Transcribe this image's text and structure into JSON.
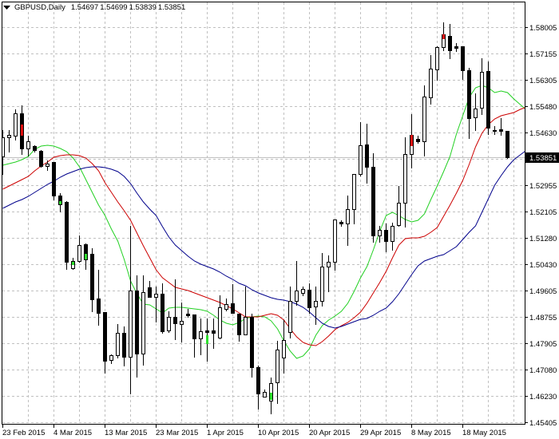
{
  "header": {
    "symbol": "GBPUSD,Daily",
    "open": "1.54697",
    "high": "1.54699",
    "low": "1.53839",
    "close": "1.53851",
    "toggle_icon": "triangle-down-icon"
  },
  "colors": {
    "background": "#ffffff",
    "grid": "#c0c0c0",
    "bull_body": "#ffffff",
    "bear_body": "#000000",
    "price_line": "#c0c0c0",
    "price_tag_bg": "#000000",
    "price_tag_text": "#ffffff"
  },
  "chart_data": {
    "type": "candlestick",
    "title": "GBPUSD,Daily",
    "xlabel": "",
    "ylabel": "",
    "ylim": [
      1.45405,
      1.58005
    ],
    "grid": true,
    "y_ticks": [
      "1.58005",
      "1.57155",
      "1.56305",
      "1.55480",
      "1.54630",
      "",
      "1.52955",
      "1.52105",
      "1.51280",
      "1.50430",
      "1.49605",
      "1.48755",
      "1.47905",
      "1.47080",
      "1.46230",
      "1.45405"
    ],
    "x_ticks": [
      {
        "label": "23 Feb 2015",
        "index": 0
      },
      {
        "label": "4 Mar 2015",
        "index": 8
      },
      {
        "label": "13 Mar 2015",
        "index": 16
      },
      {
        "label": "23 Mar 2015",
        "index": 24
      },
      {
        "label": "1 Apr 2015",
        "index": 32
      },
      {
        "label": "10 Apr 2015",
        "index": 40
      },
      {
        "label": "20 Apr 2015",
        "index": 48
      },
      {
        "label": "29 Apr 2015",
        "index": 56
      },
      {
        "label": "8 May 2015",
        "index": 64
      },
      {
        "label": "18 May 2015",
        "index": 72
      }
    ],
    "current_price": {
      "value": 1.53851,
      "label": "1.53851"
    },
    "candles_format": [
      "open",
      "high",
      "low",
      "close"
    ],
    "candles": [
      [
        1.53881,
        1.54721,
        1.53321,
        1.54492
      ],
      [
        1.54492,
        1.54721,
        1.54034,
        1.54569
      ],
      [
        1.54543,
        1.55383,
        1.54416,
        1.55256
      ],
      [
        1.55256,
        1.5551,
        1.53958,
        1.54136
      ],
      [
        1.54136,
        1.54543,
        1.53907,
        1.54365
      ],
      [
        1.54212,
        1.54238,
        1.54034,
        1.54085
      ],
      [
        1.5406,
        1.54085,
        1.5355,
        1.53576
      ],
      [
        1.53576,
        1.53754,
        1.53449,
        1.53652
      ],
      [
        1.53703,
        1.53703,
        1.52507,
        1.52634
      ],
      [
        1.52634,
        1.5271,
        1.52125,
        1.52354
      ],
      [
        1.5243,
        1.52456,
        1.50292,
        1.50521
      ],
      [
        1.50318,
        1.50649,
        1.50292,
        1.50547
      ],
      [
        1.50547,
        1.51361,
        1.50521,
        1.51056
      ],
      [
        1.51081,
        1.51107,
        1.50292,
        1.50598
      ],
      [
        1.50776,
        1.50954,
        1.48943,
        1.49325
      ],
      [
        1.4935,
        1.50267,
        1.4851,
        1.48892
      ],
      [
        1.48918,
        1.48918,
        1.46983,
        1.47365
      ],
      [
        1.4739,
        1.47568,
        1.47288,
        1.47543
      ],
      [
        1.47543,
        1.48536,
        1.47467,
        1.48256
      ],
      [
        1.48256,
        1.48459,
        1.47212,
        1.47492
      ],
      [
        1.47492,
        1.51667,
        1.46321,
        1.49605
      ],
      [
        1.49605,
        1.50089,
        1.46856,
        1.47594
      ],
      [
        1.47594,
        1.50089,
        1.47238,
        1.49554
      ],
      [
        1.49707,
        1.4991,
        1.49401,
        1.49401
      ],
      [
        1.49401,
        1.49732,
        1.48612,
        1.49503
      ],
      [
        1.49503,
        1.49834,
        1.48256,
        1.48307
      ],
      [
        1.48332,
        1.48943,
        1.48281,
        1.48765
      ],
      [
        1.48765,
        1.49961,
        1.48052,
        1.48561
      ],
      [
        1.48536,
        1.49223,
        1.47976,
        1.48638
      ],
      [
        1.48867,
        1.49019,
        1.48765,
        1.48816
      ],
      [
        1.48841,
        1.48841,
        1.47492,
        1.48078
      ],
      [
        1.48078,
        1.48714,
        1.47568,
        1.48307
      ],
      [
        1.48332,
        1.48714,
        1.47365,
        1.48281
      ],
      [
        1.48332,
        1.48714,
        1.47772,
        1.48256
      ],
      [
        1.48103,
        1.49452,
        1.48078,
        1.4907
      ],
      [
        1.49019,
        1.4935,
        1.48968,
        1.49172
      ],
      [
        1.49198,
        1.49809,
        1.48892,
        1.48892
      ],
      [
        1.48867,
        1.48867,
        1.48001,
        1.48205
      ],
      [
        1.48205,
        1.49732,
        1.48205,
        1.48765
      ],
      [
        1.48765,
        1.48867,
        1.46856,
        1.47161
      ],
      [
        1.47161,
        1.47212,
        1.45838,
        1.46321
      ],
      [
        1.46219,
        1.46448,
        1.46219,
        1.46372
      ],
      [
        1.46092,
        1.4683,
        1.45685,
        1.46652
      ],
      [
        1.46678,
        1.48001,
        1.46016,
        1.47721
      ],
      [
        1.47467,
        1.48663,
        1.46983,
        1.48027
      ],
      [
        1.48281,
        1.49732,
        1.48103,
        1.49274
      ],
      [
        1.49274,
        1.50547,
        1.49147,
        1.49605
      ],
      [
        1.49529,
        1.49732,
        1.49452,
        1.49656
      ],
      [
        1.4963,
        1.49834,
        1.48892,
        1.4907
      ],
      [
        1.49096,
        1.49732,
        1.48536,
        1.49274
      ],
      [
        1.49274,
        1.50801,
        1.49121,
        1.50369
      ],
      [
        1.50369,
        1.50725,
        1.49579,
        1.50521
      ],
      [
        1.50521,
        1.5187,
        1.50267,
        1.5187
      ],
      [
        1.51794,
        1.51845,
        1.51667,
        1.51743
      ],
      [
        1.51743,
        1.52634,
        1.51056,
        1.52201
      ],
      [
        1.52201,
        1.53321,
        1.51743,
        1.53321
      ],
      [
        1.53321,
        1.54976,
        1.5327,
        1.54238
      ],
      [
        1.54263,
        1.54925,
        1.53041,
        1.5355
      ],
      [
        1.5355,
        1.53983,
        1.51158,
        1.51361
      ],
      [
        1.51361,
        1.51667,
        1.51158,
        1.51539
      ],
      [
        1.51539,
        1.51743,
        1.50852,
        1.51183
      ],
      [
        1.51183,
        1.51769,
        1.50903,
        1.51667
      ],
      [
        1.51692,
        1.5294,
        1.51667,
        1.52405
      ],
      [
        1.52405,
        1.54492,
        1.51641,
        1.53958
      ],
      [
        1.53958,
        1.5523,
        1.53525,
        1.54569
      ],
      [
        1.54441,
        1.54543,
        1.54314,
        1.54365
      ],
      [
        1.54365,
        1.56147,
        1.53907,
        1.5579
      ],
      [
        1.55765,
        1.57114,
        1.55561,
        1.56681
      ],
      [
        1.56656,
        1.57394,
        1.56325,
        1.57369
      ],
      [
        1.57369,
        1.58158,
        1.57267,
        1.57776
      ],
      [
        1.57725,
        1.58107,
        1.57012,
        1.57267
      ],
      [
        1.57394,
        1.57496,
        1.57241,
        1.57343
      ],
      [
        1.57394,
        1.57394,
        1.5635,
        1.5663
      ],
      [
        1.5663,
        1.56707,
        1.54467,
        1.55103
      ],
      [
        1.55129,
        1.55892,
        1.54721,
        1.55409
      ],
      [
        1.55434,
        1.57012,
        1.5523,
        1.5658
      ],
      [
        1.56605,
        1.5691,
        1.54594,
        1.54798
      ],
      [
        1.54721,
        1.54849,
        1.54594,
        1.54696
      ],
      [
        1.54747,
        1.55103,
        1.54569,
        1.54696
      ],
      [
        1.54697,
        1.54699,
        1.53839,
        1.53851
      ]
    ],
    "candle_marks": [
      {
        "index": 3,
        "color": "#e01010",
        "from": 1.549,
        "to": 1.54543
      },
      {
        "index": 9,
        "color": "#2fe02f",
        "from": 1.52456,
        "to": 1.52354
      },
      {
        "index": 11,
        "color": "#2fe02f",
        "from": 1.50521,
        "to": 1.50419
      },
      {
        "index": 13,
        "color": "#2fe02f",
        "from": 1.50776,
        "to": 1.50598
      },
      {
        "index": 32,
        "color": "#2fe02f",
        "from": 1.48179,
        "to": 1.47899
      },
      {
        "index": 42,
        "color": "#2fe02f",
        "from": 1.46347,
        "to": 1.46118
      },
      {
        "index": 64,
        "color": "#e01010",
        "from": 1.54569,
        "to": 1.54212
      },
      {
        "index": 69,
        "color": "#e01010",
        "from": 1.57776,
        "to": 1.57623
      }
    ],
    "series": [
      {
        "name": "Green MA",
        "color": "#22d022",
        "values": [
          1.53601,
          1.53652,
          1.53703,
          1.53779,
          1.53881,
          1.5411,
          1.54212,
          1.54237,
          1.54212,
          1.54135,
          1.54034,
          1.5383,
          1.5355,
          1.53143,
          1.52735,
          1.52328,
          1.51997,
          1.51564,
          1.51183,
          1.50597,
          1.4991,
          1.49503,
          1.49172,
          1.49146,
          1.49019,
          1.48892,
          1.49044,
          1.4907,
          1.4907,
          1.49044,
          1.49019,
          1.48993,
          1.48943,
          1.48815,
          1.48663,
          1.48561,
          1.4851,
          1.48586,
          1.48714,
          1.48764,
          1.4879,
          1.48764,
          1.48637,
          1.48383,
          1.48001,
          1.4767,
          1.47441,
          1.47517,
          1.47746,
          1.48179,
          1.48484,
          1.48663,
          1.4879,
          1.48943,
          1.49197,
          1.49579,
          1.50012,
          1.50368,
          1.50903,
          1.51488,
          1.51997,
          1.52099,
          1.51997,
          1.5187,
          1.51794,
          1.51844,
          1.52048,
          1.52506,
          1.52939,
          1.53397,
          1.53881,
          1.54594,
          1.55179,
          1.55765,
          1.5607,
          1.56146,
          1.5607,
          1.55917,
          1.55968,
          1.55917,
          1.55714,
          1.55535,
          1.55357
        ]
      },
      {
        "name": "Red MA",
        "color": "#cc0000",
        "values": [
          1.52837,
          1.52939,
          1.53041,
          1.53143,
          1.53244,
          1.53423,
          1.53575,
          1.53703,
          1.53855,
          1.53906,
          1.53932,
          1.53932,
          1.53906,
          1.5383,
          1.53652,
          1.53423,
          1.53041,
          1.52735,
          1.5243,
          1.5215,
          1.51844,
          1.51437,
          1.5103,
          1.50648,
          1.50266,
          1.50012,
          1.49859,
          1.49706,
          1.49655,
          1.49604,
          1.49528,
          1.49452,
          1.49375,
          1.49299,
          1.49223,
          1.49121,
          1.49019,
          1.48892,
          1.48764,
          1.48764,
          1.48764,
          1.48815,
          1.48866,
          1.48815,
          1.48663,
          1.48383,
          1.48128,
          1.4795,
          1.47873,
          1.47848,
          1.47975,
          1.48153,
          1.48357,
          1.48484,
          1.48586,
          1.48739,
          1.48917,
          1.49197,
          1.49528,
          1.49859,
          1.50215,
          1.50648,
          1.51055,
          1.51259,
          1.51284,
          1.51284,
          1.51335,
          1.51463,
          1.51615,
          1.51972,
          1.52328,
          1.5271,
          1.53117,
          1.53626,
          1.54186,
          1.54619,
          1.54899,
          1.55077,
          1.55179,
          1.5523,
          1.55281,
          1.55383,
          1.55459
        ]
      },
      {
        "name": "Blue MA",
        "color": "#00008b",
        "values": [
          1.52226,
          1.52328,
          1.5243,
          1.52506,
          1.52608,
          1.52735,
          1.52863,
          1.5299,
          1.53092,
          1.53219,
          1.53321,
          1.53397,
          1.53474,
          1.53524,
          1.5355,
          1.5355,
          1.53524,
          1.53474,
          1.53397,
          1.53244,
          1.53015,
          1.5271,
          1.5243,
          1.52201,
          1.51997,
          1.51641,
          1.5131,
          1.51055,
          1.50877,
          1.50699,
          1.50546,
          1.50444,
          1.50368,
          1.50292,
          1.5019,
          1.50063,
          1.49961,
          1.49834,
          1.49757,
          1.4963,
          1.49528,
          1.49452,
          1.49375,
          1.49324,
          1.49299,
          1.49248,
          1.49172,
          1.4907,
          1.48917,
          1.48739,
          1.48561,
          1.48459,
          1.48408,
          1.48459,
          1.48535,
          1.48612,
          1.48689,
          1.48714,
          1.48815,
          1.48943,
          1.49044,
          1.49248,
          1.49503,
          1.49808,
          1.50114,
          1.50394,
          1.50546,
          1.50623,
          1.50699,
          1.5075,
          1.50877,
          1.51004,
          1.51234,
          1.51463,
          1.51666,
          1.52099,
          1.52532,
          1.52964,
          1.5327,
          1.5355,
          1.53779,
          1.53932,
          1.54085
        ]
      }
    ]
  }
}
